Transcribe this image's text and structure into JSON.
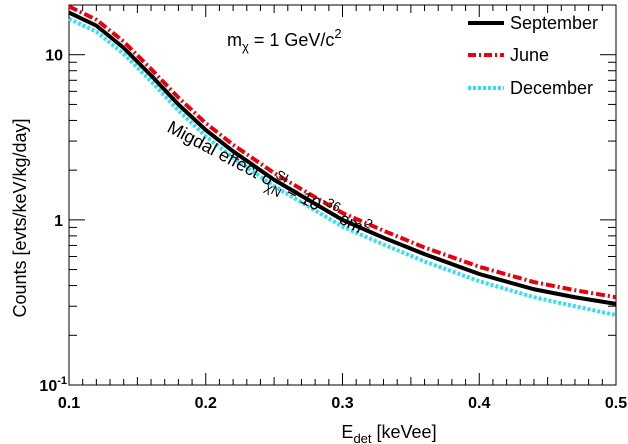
{
  "chart_data": {
    "type": "line",
    "xlabel": "E",
    "xlabel_sub": "det",
    "xlabel_unit": " [keVee]",
    "ylabel": "Counts [evts/keV/kg/day]",
    "xlim": [
      0.1,
      0.5
    ],
    "ylim": [
      0.1,
      20
    ],
    "yscale": "log",
    "x_ticks": [
      {
        "value": 0.1,
        "label": "0.1"
      },
      {
        "value": 0.2,
        "label": "0.2"
      },
      {
        "value": 0.3,
        "label": "0.3"
      },
      {
        "value": 0.4,
        "label": "0.4"
      },
      {
        "value": 0.5,
        "label": "0.5"
      }
    ],
    "y_ticks": [
      {
        "value": 0.1,
        "base": "10",
        "exp": "-1"
      },
      {
        "value": 1,
        "base": "1",
        "exp": ""
      },
      {
        "value": 10,
        "base": "10",
        "exp": ""
      }
    ],
    "legend_position": "top-right",
    "annotations": {
      "mass": {
        "m": "m",
        "chi": "χ",
        "rest": " = 1 GeV/c",
        "sup": "2"
      },
      "migdal": {
        "text": "Migdal effect σ",
        "sup": "SI",
        "sub": "χN",
        "eq": " = 10",
        "eqsup": "-36",
        "unit": " cm",
        "unitsup": "2"
      }
    },
    "series": [
      {
        "name": "September",
        "color": "#000000",
        "style": "solid",
        "x": [
          0.1,
          0.12,
          0.14,
          0.16,
          0.18,
          0.2,
          0.22,
          0.25,
          0.28,
          0.3,
          0.33,
          0.36,
          0.4,
          0.44,
          0.47,
          0.5
        ],
        "y": [
          18.0,
          15.0,
          11.0,
          7.5,
          5.0,
          3.5,
          2.6,
          1.75,
          1.25,
          1.0,
          0.78,
          0.62,
          0.47,
          0.38,
          0.34,
          0.31
        ]
      },
      {
        "name": "June",
        "color": "#e8000b",
        "style": "dashdot",
        "x": [
          0.1,
          0.12,
          0.14,
          0.16,
          0.18,
          0.2,
          0.22,
          0.25,
          0.28,
          0.3,
          0.33,
          0.36,
          0.4,
          0.44,
          0.47,
          0.5
        ],
        "y": [
          19.6,
          16.3,
          12.0,
          8.2,
          5.5,
          3.85,
          2.85,
          1.92,
          1.37,
          1.1,
          0.86,
          0.68,
          0.52,
          0.42,
          0.375,
          0.34
        ]
      },
      {
        "name": "December",
        "color": "#33e0f0",
        "style": "dotted",
        "x": [
          0.1,
          0.12,
          0.14,
          0.16,
          0.18,
          0.2,
          0.22,
          0.25,
          0.28,
          0.3,
          0.33,
          0.36,
          0.4,
          0.44,
          0.47,
          0.5
        ],
        "y": [
          16.5,
          13.8,
          10.1,
          6.9,
          4.6,
          3.2,
          2.38,
          1.6,
          1.14,
          0.91,
          0.71,
          0.56,
          0.425,
          0.34,
          0.3,
          0.265
        ]
      }
    ]
  }
}
